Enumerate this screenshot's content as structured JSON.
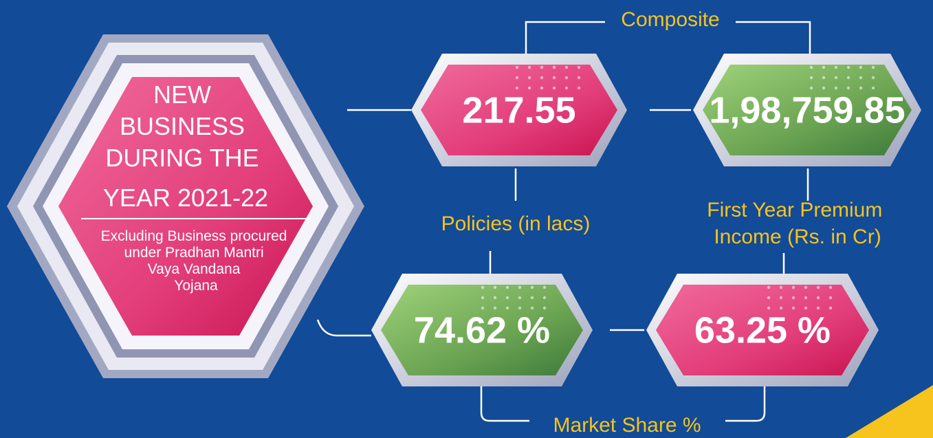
{
  "title_lines": [
    "NEW",
    "BUSINESS",
    "DURING THE",
    "YEAR 2021-22"
  ],
  "note_lines": [
    "Excluding Business procured",
    "under Pradhan Mantri",
    "Vaya Vandana",
    "Yojana"
  ],
  "group_top": "Composite",
  "group_bottom": "Market Share %",
  "boxes": [
    {
      "value": "217.55"
    },
    {
      "value": "1,98,759.85"
    },
    {
      "value": "74.62 %"
    },
    {
      "value": "63.25 %"
    }
  ],
  "label_policies": "Policies (in lacs)",
  "label_premium_lines": [
    "First Year Premium",
    "Income (Rs. in Cr)"
  ]
}
